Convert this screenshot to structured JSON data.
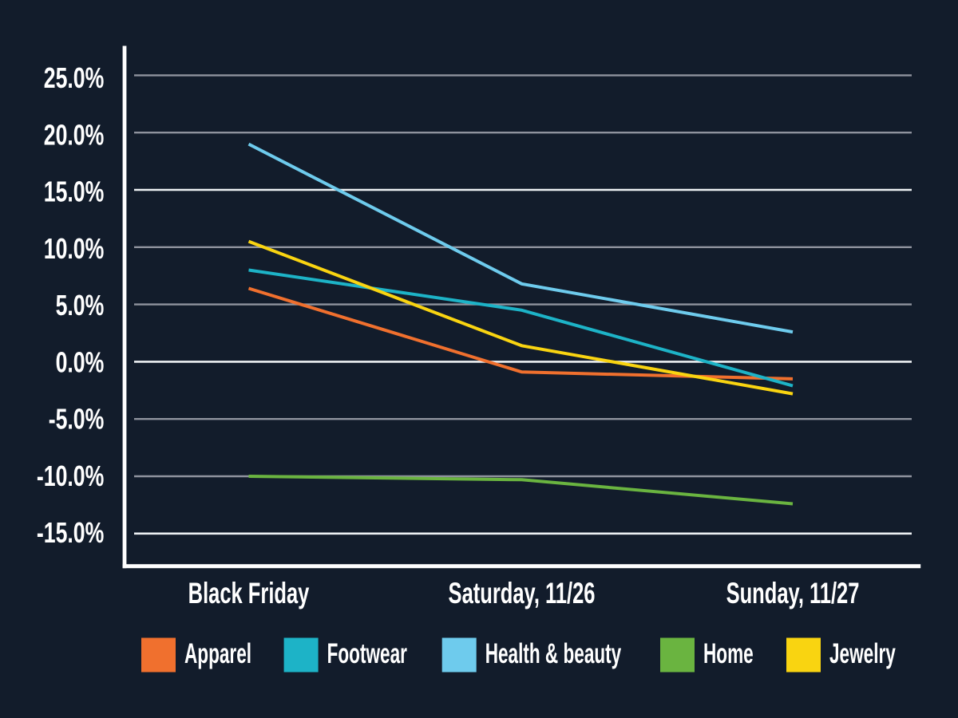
{
  "chart_data": {
    "type": "line",
    "title": "",
    "xlabel": "",
    "ylabel": "",
    "categories": [
      "Black Friday",
      "Saturday, 11/26",
      "Sunday, 11/27"
    ],
    "series": [
      {
        "name": "Apparel",
        "color": "#f0702e",
        "values": [
          6.4,
          -0.9,
          -1.5
        ]
      },
      {
        "name": "Footwear",
        "color": "#1db3c7",
        "values": [
          8.0,
          4.5,
          -2.1
        ]
      },
      {
        "name": "Health & beauty",
        "color": "#6ecbed",
        "values": [
          19.0,
          6.8,
          2.6
        ]
      },
      {
        "name": "Home",
        "color": "#6ab440",
        "values": [
          -10.0,
          -10.3,
          -12.4
        ]
      },
      {
        "name": "Jewelry",
        "color": "#f9d411",
        "values": [
          10.5,
          1.4,
          -2.8
        ]
      }
    ],
    "y_ticks": [
      {
        "value": 25,
        "label": "25.0%",
        "major": false
      },
      {
        "value": 20,
        "label": "20.0%",
        "major": false
      },
      {
        "value": 15,
        "label": "15.0%",
        "major": true
      },
      {
        "value": 10,
        "label": "10.0%",
        "major": false
      },
      {
        "value": 5,
        "label": "5.0%",
        "major": false
      },
      {
        "value": 0,
        "label": "0.0%",
        "major": true
      },
      {
        "value": -5,
        "label": "-5.0%",
        "major": false
      },
      {
        "value": -10,
        "label": "-10.0%",
        "major": false
      },
      {
        "value": -15,
        "label": "-15.0%",
        "major": true
      }
    ],
    "ylim": [
      -17.9,
      27.6
    ],
    "grid": "horizontal",
    "legend_position": "bottom"
  },
  "colors": {
    "background": "#121c2b",
    "axis": "#ffffff",
    "grid_minor": "#8f939e",
    "grid_major": "#eef1f4",
    "text": "#ffffff"
  }
}
